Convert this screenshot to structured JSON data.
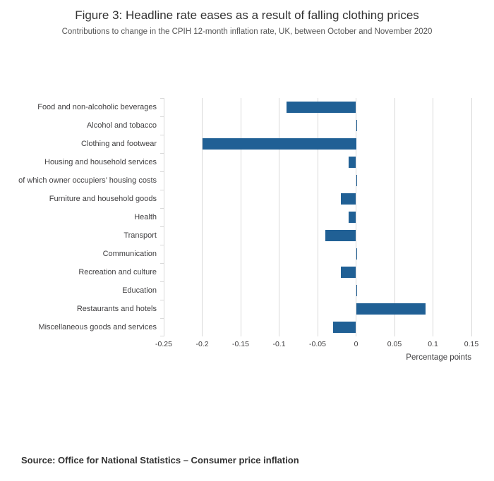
{
  "title": "Figure 3: Headline rate eases as a result of falling clothing prices",
  "subtitle": "Contributions to change in the CPIH 12-month inflation rate, UK, between October and November 2020",
  "source": "Source: Office for National Statistics – Consumer price inflation",
  "colors": {
    "bar": "#206095",
    "grid": "#d9d9d9",
    "text": "#414042"
  },
  "chart_data": {
    "type": "bar",
    "orientation": "horizontal",
    "title": "Figure 3: Headline rate eases as a result of falling clothing prices",
    "subtitle": "Contributions to change in the CPIH 12-month inflation rate, UK, between October and November 2020",
    "categories": [
      "Food and non-alcoholic beverages",
      "Alcohol and tobacco",
      "Clothing and footwear",
      "Housing and household services",
      "of which owner occupiers’ housing costs",
      "Furniture and household goods",
      "Health",
      "Transport",
      "Communication",
      "Recreation and culture",
      "Education",
      "Restaurants and hotels",
      "Miscellaneous goods and services"
    ],
    "values": [
      -0.09,
      0,
      -0.2,
      -0.01,
      0,
      -0.02,
      -0.01,
      -0.04,
      0,
      -0.02,
      0,
      0.09,
      -0.03
    ],
    "xlabel": "Percentage points",
    "xlim": [
      -0.25,
      0.15
    ],
    "ticks": [
      -0.25,
      -0.2,
      -0.15,
      -0.1,
      -0.05,
      0,
      0.05,
      0.1,
      0.15
    ],
    "tick_labels": [
      "-0.25",
      "-0.2",
      "-0.15",
      "-0.1",
      "-0.05",
      "0",
      "0.05",
      "0.1",
      "0.15"
    ],
    "grid": true,
    "legend": false
  }
}
